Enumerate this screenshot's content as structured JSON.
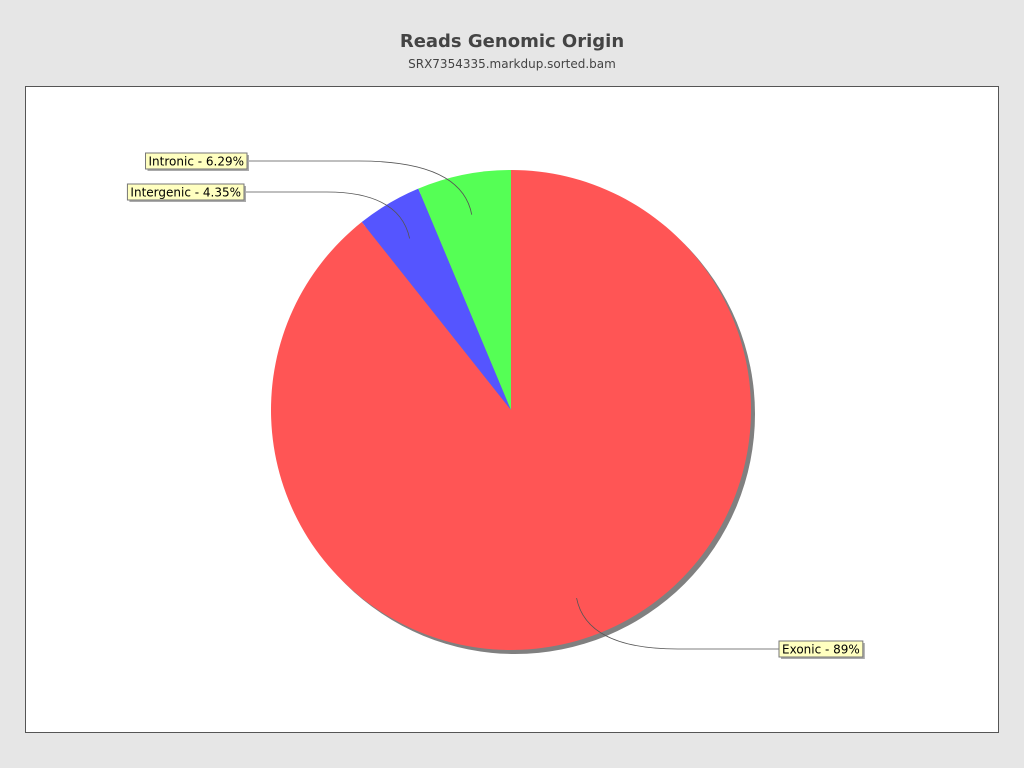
{
  "chart_data": {
    "type": "pie",
    "title": "Reads Genomic Origin",
    "subtitle": "SRX7354335.markdup.sorted.bam",
    "start_angle": "12 o'clock",
    "direction": "clockwise",
    "slices": [
      {
        "name": "Exonic",
        "value": 89,
        "label": "Exonic - 89%",
        "color": "#ff5555"
      },
      {
        "name": "Intergenic",
        "value": 4.35,
        "label": "Intergenic - 4.35%",
        "color": "#5555ff"
      },
      {
        "name": "Intronic",
        "value": 6.29,
        "label": "Intronic - 6.29%",
        "color": "#55ff55"
      }
    ],
    "label_background": "#ffffc0",
    "shadow_color": "#808080"
  }
}
